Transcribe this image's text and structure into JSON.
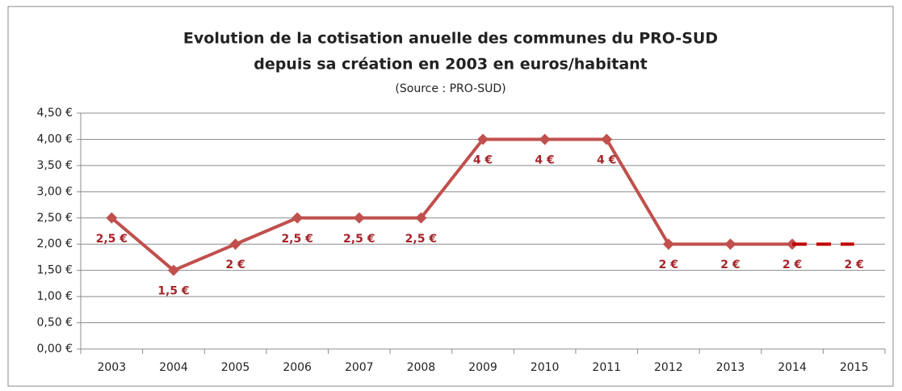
{
  "chart_data": {
    "type": "line",
    "title": [
      "Evolution de la cotisation anuelle des communes du PRO-SUD",
      "depuis sa création en 2003 en euros/habitant"
    ],
    "subtitle": "(Source : PRO-SUD)",
    "categories": [
      "2003",
      "2004",
      "2005",
      "2006",
      "2007",
      "2008",
      "2009",
      "2010",
      "2011",
      "2012",
      "2013",
      "2014",
      "2015"
    ],
    "series": [
      {
        "color": "#c0504d",
        "marker": "diamond",
        "dashed": false,
        "values": [
          2.5,
          1.5,
          2,
          2.5,
          2.5,
          2.5,
          4,
          4,
          4,
          2,
          2,
          2,
          null
        ],
        "value_labels": [
          "2,5 €",
          "1,5 €",
          "2 €",
          "2,5 €",
          "2,5 €",
          "2,5 €",
          "4 €",
          "4 €",
          "4 €",
          "2 €",
          "2 €",
          "2 €",
          null
        ]
      },
      {
        "color": "#c00000",
        "dashed": true,
        "values": [
          null,
          null,
          null,
          null,
          null,
          null,
          null,
          null,
          null,
          null,
          null,
          2,
          2
        ],
        "value_labels": [
          null,
          null,
          null,
          null,
          null,
          null,
          null,
          null,
          null,
          null,
          null,
          null,
          "2 €"
        ]
      }
    ],
    "ylim": [
      0,
      4.5
    ],
    "yticks": [
      {
        "value": 0,
        "label": "0,00 €"
      },
      {
        "value": 0.5,
        "label": "0,50 €"
      },
      {
        "value": 1,
        "label": "1,00 €"
      },
      {
        "value": 1.5,
        "label": "1,50 €"
      },
      {
        "value": 2,
        "label": "2,00 €"
      },
      {
        "value": 2.5,
        "label": "2,50 €"
      },
      {
        "value": 3,
        "label": "3,00 €"
      },
      {
        "value": 3.5,
        "label": "3,50 €"
      },
      {
        "value": 4,
        "label": "4,00 €"
      },
      {
        "value": 4.5,
        "label": "4,50 €"
      }
    ],
    "grid": true,
    "label_color": "#a5252a"
  }
}
